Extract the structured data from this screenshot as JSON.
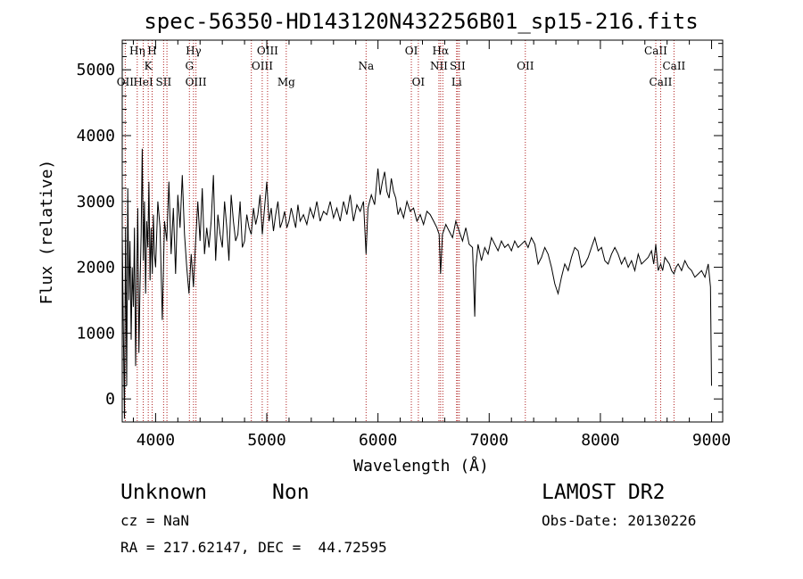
{
  "chart_data": {
    "type": "line",
    "title": "spec-56350-HD143120N432256B01_sp15-216.fits",
    "xlabel": "Wavelength (Å)",
    "ylabel": "Flux (relative)",
    "xlim": [
      3700,
      9100
    ],
    "ylim": [
      -350,
      5450
    ],
    "xticks": [
      4000,
      5000,
      6000,
      7000,
      8000,
      9000
    ],
    "yticks": [
      0,
      1000,
      2000,
      3000,
      4000,
      5000
    ],
    "grid": false,
    "series": [
      {
        "color": "#000000",
        "x": [
          3700,
          3710,
          3720,
          3730,
          3740,
          3750,
          3760,
          3770,
          3780,
          3790,
          3800,
          3810,
          3820,
          3830,
          3840,
          3850,
          3860,
          3870,
          3880,
          3890,
          3900,
          3910,
          3920,
          3930,
          3940,
          3950,
          3960,
          3970,
          3980,
          3990,
          4000,
          4020,
          4040,
          4060,
          4080,
          4100,
          4120,
          4140,
          4160,
          4180,
          4200,
          4220,
          4240,
          4260,
          4280,
          4300,
          4320,
          4340,
          4360,
          4380,
          4400,
          4420,
          4440,
          4460,
          4480,
          4500,
          4520,
          4540,
          4560,
          4580,
          4600,
          4620,
          4640,
          4660,
          4680,
          4700,
          4720,
          4740,
          4760,
          4780,
          4800,
          4820,
          4840,
          4860,
          4880,
          4900,
          4920,
          4940,
          4960,
          4980,
          5000,
          5020,
          5040,
          5060,
          5080,
          5100,
          5120,
          5140,
          5160,
          5180,
          5200,
          5220,
          5240,
          5260,
          5280,
          5300,
          5330,
          5360,
          5390,
          5420,
          5450,
          5480,
          5510,
          5540,
          5570,
          5600,
          5630,
          5660,
          5690,
          5720,
          5750,
          5780,
          5810,
          5840,
          5870,
          5893,
          5910,
          5940,
          5970,
          6000,
          6020,
          6040,
          6060,
          6080,
          6100,
          6120,
          6140,
          6160,
          6180,
          6200,
          6230,
          6260,
          6290,
          6320,
          6350,
          6380,
          6410,
          6440,
          6470,
          6500,
          6530,
          6550,
          6563,
          6580,
          6610,
          6640,
          6670,
          6700,
          6730,
          6760,
          6790,
          6820,
          6850,
          6870,
          6880,
          6900,
          6930,
          6960,
          6990,
          7020,
          7050,
          7080,
          7110,
          7140,
          7170,
          7200,
          7230,
          7260,
          7290,
          7320,
          7350,
          7380,
          7410,
          7440,
          7470,
          7500,
          7530,
          7560,
          7590,
          7620,
          7650,
          7680,
          7710,
          7740,
          7770,
          7800,
          7830,
          7860,
          7890,
          7920,
          7950,
          7980,
          8010,
          8040,
          8070,
          8100,
          8130,
          8160,
          8190,
          8220,
          8250,
          8280,
          8310,
          8340,
          8370,
          8400,
          8430,
          8460,
          8480,
          8498,
          8520,
          8542,
          8560,
          8580,
          8600,
          8620,
          8640,
          8662,
          8680,
          8700,
          8730,
          8760,
          8790,
          8820,
          8850,
          8880,
          8910,
          8940,
          8970,
          8990,
          9000
        ],
        "values": [
          2500,
          1100,
          -300,
          2600,
          200,
          3200,
          1500,
          2400,
          900,
          2000,
          1400,
          2600,
          500,
          1800,
          2900,
          700,
          1700,
          2500,
          3800,
          2100,
          3000,
          1600,
          2700,
          2300,
          3300,
          1800,
          2600,
          1900,
          2800,
          2200,
          2000,
          3000,
          2600,
          1200,
          2700,
          2400,
          3300,
          2200,
          2900,
          1900,
          3100,
          2600,
          3400,
          2500,
          2000,
          1600,
          2200,
          1700,
          2400,
          3000,
          2400,
          3200,
          2200,
          2600,
          2300,
          2700,
          3400,
          2100,
          2800,
          2500,
          2300,
          3000,
          2600,
          2100,
          3100,
          2700,
          2400,
          2500,
          3000,
          2300,
          2400,
          2800,
          2600,
          2500,
          2900,
          2650,
          2800,
          3100,
          2500,
          2900,
          3300,
          2700,
          2900,
          2550,
          2800,
          3000,
          2600,
          2700,
          2850,
          2600,
          2700,
          2900,
          2750,
          2600,
          2950,
          2700,
          2800,
          2650,
          2900,
          2750,
          3000,
          2700,
          2850,
          2800,
          3000,
          2750,
          2900,
          2700,
          3000,
          2800,
          3100,
          2700,
          2950,
          2850,
          3000,
          2200,
          2900,
          3100,
          2950,
          3500,
          3100,
          3300,
          3450,
          3150,
          3050,
          3350,
          3150,
          3050,
          2800,
          2900,
          2750,
          3000,
          2850,
          2900,
          2700,
          2800,
          2650,
          2850,
          2800,
          2700,
          2600,
          2500,
          1900,
          2500,
          2650,
          2550,
          2450,
          2700,
          2550,
          2400,
          2600,
          2350,
          2300,
          1250,
          2000,
          2350,
          2100,
          2300,
          2200,
          2450,
          2350,
          2250,
          2400,
          2300,
          2350,
          2250,
          2400,
          2300,
          2350,
          2400,
          2300,
          2450,
          2350,
          2050,
          2150,
          2300,
          2200,
          2000,
          1750,
          1600,
          1850,
          2050,
          1950,
          2150,
          2300,
          2250,
          2000,
          2050,
          2150,
          2300,
          2450,
          2250,
          2300,
          2100,
          2050,
          2200,
          2300,
          2200,
          2050,
          2150,
          2000,
          2100,
          1950,
          2200,
          2050,
          2100,
          2150,
          2250,
          2050,
          2350,
          1950,
          2050,
          1950,
          2150,
          2100,
          2050,
          1950,
          1900,
          2000,
          2050,
          1950,
          2100,
          2000,
          1950,
          1850,
          1900,
          1950,
          1850,
          2050,
          1700,
          200
        ]
      }
    ],
    "line_markers": [
      {
        "wl": 3727,
        "label": "OII",
        "row": 3
      },
      {
        "wl": 3835,
        "label": "Hη",
        "row": 1
      },
      {
        "wl": 3889,
        "label": "HeI",
        "row": 3
      },
      {
        "wl": 3934,
        "label": "K",
        "row": 2
      },
      {
        "wl": 3969,
        "label": "H",
        "row": 1
      },
      {
        "wl": 4072,
        "label": "SII",
        "row": 3
      },
      {
        "wl": 4102,
        "label": "",
        "row": 0
      },
      {
        "wl": 4304,
        "label": "G",
        "row": 2
      },
      {
        "wl": 4341,
        "label": "Hγ",
        "row": 1
      },
      {
        "wl": 4363,
        "label": "OIII",
        "row": 3
      },
      {
        "wl": 4861,
        "label": "",
        "row": 0
      },
      {
        "wl": 4959,
        "label": "OIII",
        "row": 2
      },
      {
        "wl": 5007,
        "label": "OIII",
        "row": 1
      },
      {
        "wl": 5175,
        "label": "Mg",
        "row": 3
      },
      {
        "wl": 5893,
        "label": "Na",
        "row": 2
      },
      {
        "wl": 6300,
        "label": "OI",
        "row": 1
      },
      {
        "wl": 6363,
        "label": "OI",
        "row": 3
      },
      {
        "wl": 6548,
        "label": "NII",
        "row": 2
      },
      {
        "wl": 6563,
        "label": "Hα",
        "row": 1
      },
      {
        "wl": 6583,
        "label": "",
        "row": 0
      },
      {
        "wl": 6707,
        "label": "Li",
        "row": 3
      },
      {
        "wl": 6716,
        "label": "SII",
        "row": 2
      },
      {
        "wl": 6731,
        "label": "",
        "row": 0
      },
      {
        "wl": 7325,
        "label": "OII",
        "row": 2
      },
      {
        "wl": 8498,
        "label": "CaII",
        "row": 1
      },
      {
        "wl": 8542,
        "label": "CaII",
        "row": 3
      },
      {
        "wl": 8662,
        "label": "CaII",
        "row": 2
      }
    ]
  },
  "info": {
    "object_class": "Unknown",
    "subclass": "Non",
    "cz": "cz = NaN",
    "radec": "RA = 217.62147, DEC =  44.72595",
    "survey": "LAMOST DR2",
    "obs_date": "Obs-Date: 20130226"
  }
}
